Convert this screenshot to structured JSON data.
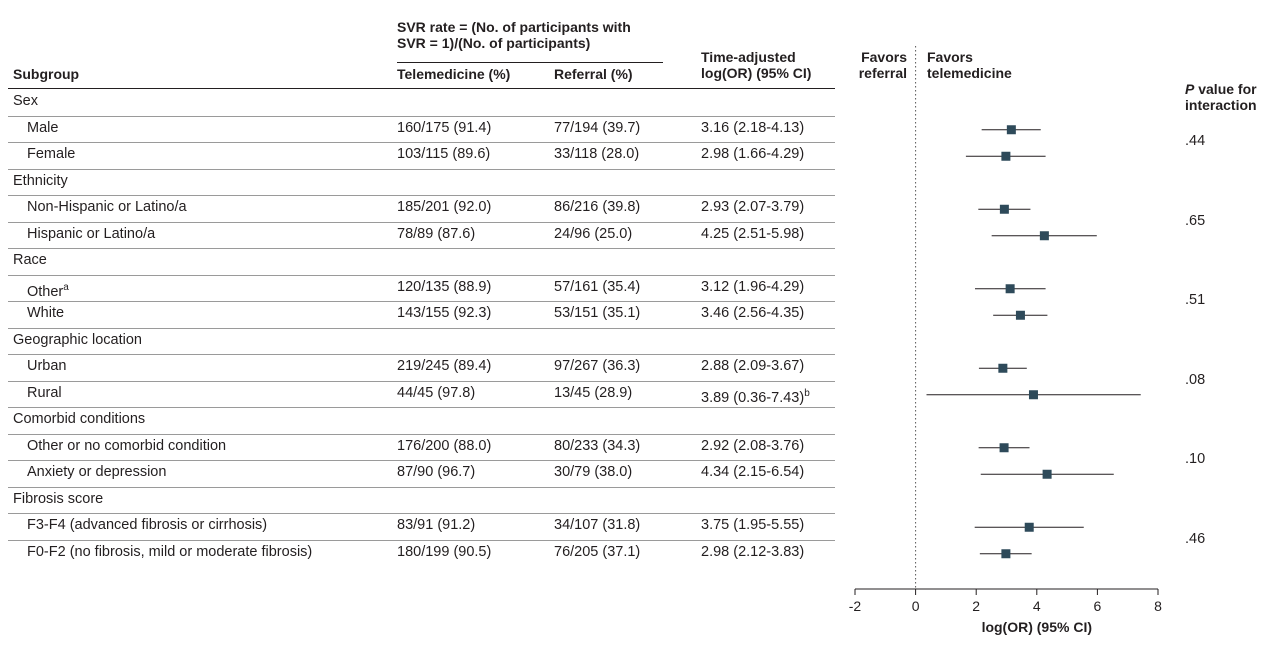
{
  "header": {
    "svr_rate_line1": "SVR rate = (No. of participants with",
    "svr_rate_line2": "SVR = 1)/(No. of participants)",
    "subgroup": "Subgroup",
    "telemedicine": "Telemedicine (%)",
    "referral": "Referral (%)",
    "ci_line1": "Time-adjusted",
    "ci_line2": "log(OR) (95% CI)",
    "favors_ref_1": "Favors",
    "favors_ref_2": "referral",
    "favors_tel_1": "Favors",
    "favors_tel_2": "telemedicine",
    "p_italic": "P",
    "p_line1_rest": " value for",
    "p_line2": "interaction"
  },
  "rows": [
    {
      "kind": "group",
      "label": "Sex"
    },
    {
      "kind": "item",
      "label": "Male",
      "tele": "160/175 (91.4)",
      "ref": "77/194 (39.7)",
      "ci": "3.16 (2.18-4.13)"
    },
    {
      "kind": "item",
      "label": "Female",
      "tele": "103/115 (89.6)",
      "ref": "33/118 (28.0)",
      "ci": "2.98 (1.66-4.29)"
    },
    {
      "kind": "group",
      "label": "Ethnicity"
    },
    {
      "kind": "item",
      "label": "Non-Hispanic or Latino/a",
      "tele": "185/201 (92.0)",
      "ref": "86/216 (39.8)",
      "ci": "2.93 (2.07-3.79)"
    },
    {
      "kind": "item",
      "label": "Hispanic or Latino/a",
      "tele": "78/89 (87.6)",
      "ref": "24/96 (25.0)",
      "ci": "4.25 (2.51-5.98)"
    },
    {
      "kind": "group",
      "label": "Race"
    },
    {
      "kind": "item",
      "label": "Other",
      "sup": "a",
      "tele": "120/135 (88.9)",
      "ref": "57/161 (35.4)",
      "ci": "3.12 (1.96-4.29)"
    },
    {
      "kind": "item",
      "label": "White",
      "tele": "143/155 (92.3)",
      "ref": "53/151 (35.1)",
      "ci": "3.46 (2.56-4.35)"
    },
    {
      "kind": "group",
      "label": "Geographic location"
    },
    {
      "kind": "item",
      "label": "Urban",
      "tele": "219/245 (89.4)",
      "ref": "97/267 (36.3)",
      "ci": "2.88 (2.09-3.67)"
    },
    {
      "kind": "item",
      "label": "Rural",
      "tele": "44/45 (97.8)",
      "ref": "13/45 (28.9)",
      "ci": "3.89 (0.36-7.43)",
      "ci_sup": "b"
    },
    {
      "kind": "group",
      "label": "Comorbid conditions"
    },
    {
      "kind": "item",
      "label": "Other or no comorbid condition",
      "tele": "176/200 (88.0)",
      "ref": "80/233 (34.3)",
      "ci": "2.92 (2.08-3.76)"
    },
    {
      "kind": "item",
      "label": "Anxiety or depression",
      "tele": "87/90 (96.7)",
      "ref": "30/79 (38.0)",
      "ci": "4.34 (2.15-6.54)"
    },
    {
      "kind": "group",
      "label": "Fibrosis score"
    },
    {
      "kind": "item",
      "label": "F3-F4 (advanced fibrosis or cirrhosis)",
      "tele": "83/91 (91.2)",
      "ref": "34/107 (31.8)",
      "ci": "3.75 (1.95-5.55)"
    },
    {
      "kind": "item",
      "label": "F0-F2 (no fibrosis, mild or moderate fibrosis)",
      "tele": "180/199 (90.5)",
      "ref": "76/205 (37.1)",
      "ci": "2.98 (2.12-3.83)"
    }
  ],
  "p_values": [
    ".44",
    ".65",
    ".51",
    ".08",
    ".10",
    ".46"
  ],
  "colors": {
    "marker": "#2e4a5a",
    "line": "#231f20",
    "rule": "#9a9a9a"
  },
  "chart_data": {
    "type": "forest",
    "xlabel": "log(OR) (95% CI)",
    "xlim": [
      -2,
      8
    ],
    "xticks": [
      -2,
      0,
      2,
      4,
      6,
      8
    ],
    "reference_line": 0,
    "reference_line_style": "dotted",
    "series": [
      {
        "label": "Male",
        "estimate": 3.16,
        "lower": 2.18,
        "upper": 4.13
      },
      {
        "label": "Female",
        "estimate": 2.98,
        "lower": 1.66,
        "upper": 4.29
      },
      {
        "label": "Non-Hispanic or Latino/a",
        "estimate": 2.93,
        "lower": 2.07,
        "upper": 3.79
      },
      {
        "label": "Hispanic or Latino/a",
        "estimate": 4.25,
        "lower": 2.51,
        "upper": 5.98
      },
      {
        "label": "Other",
        "estimate": 3.12,
        "lower": 1.96,
        "upper": 4.29
      },
      {
        "label": "White",
        "estimate": 3.46,
        "lower": 2.56,
        "upper": 4.35
      },
      {
        "label": "Urban",
        "estimate": 2.88,
        "lower": 2.09,
        "upper": 3.67
      },
      {
        "label": "Rural",
        "estimate": 3.89,
        "lower": 0.36,
        "upper": 7.43
      },
      {
        "label": "Other or no comorbid condition",
        "estimate": 2.92,
        "lower": 2.08,
        "upper": 3.76
      },
      {
        "label": "Anxiety or depression",
        "estimate": 4.34,
        "lower": 2.15,
        "upper": 6.54
      },
      {
        "label": "F3-F4 (advanced fibrosis or cirrhosis)",
        "estimate": 3.75,
        "lower": 1.95,
        "upper": 5.55
      },
      {
        "label": "F0-F2 (no fibrosis, mild or moderate fibrosis)",
        "estimate": 2.98,
        "lower": 2.12,
        "upper": 3.83
      }
    ]
  }
}
